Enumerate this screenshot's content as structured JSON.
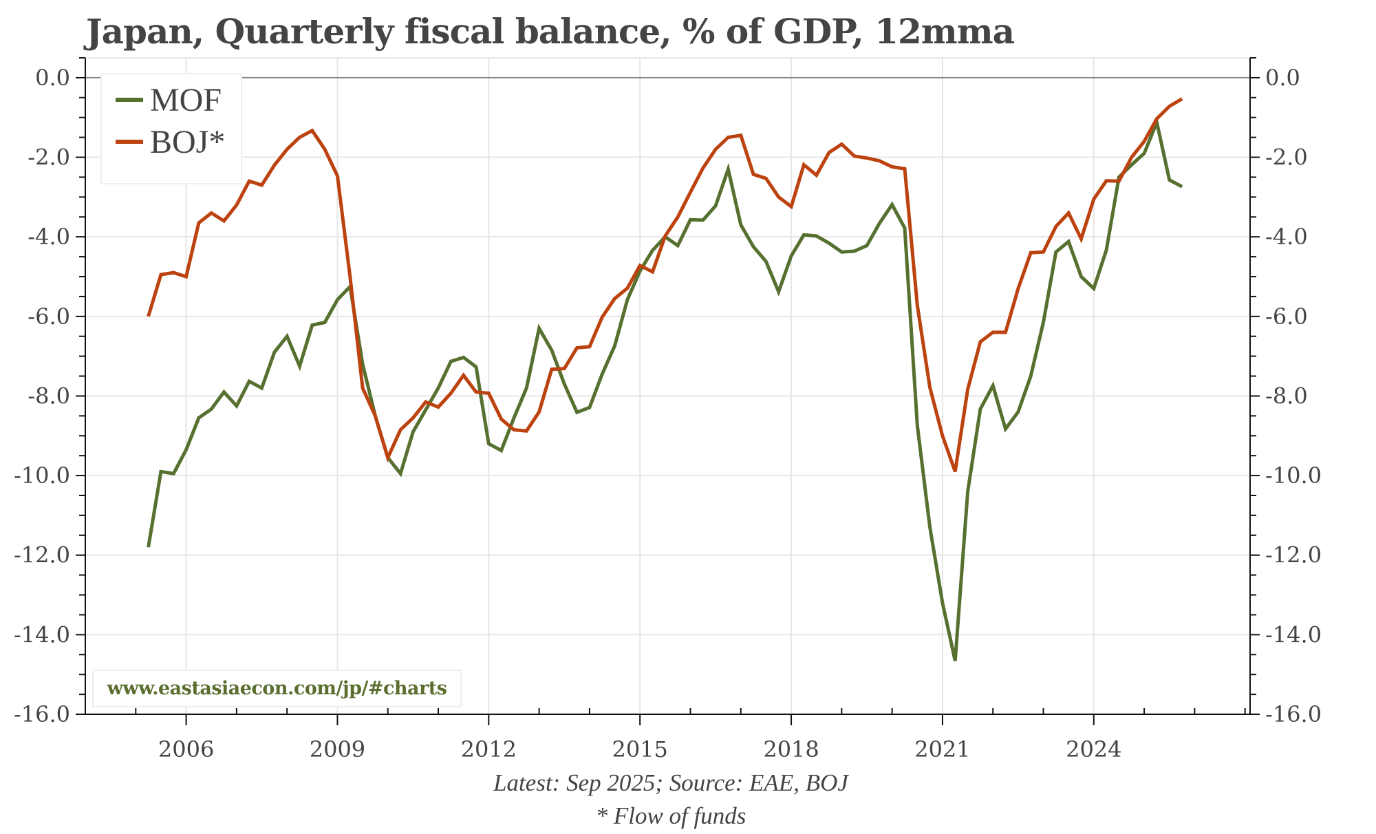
{
  "chart_data": {
    "type": "line",
    "title": "Japan, Quarterly fiscal balance, % of GDP, 12mma",
    "xlabel": "",
    "ylabel": "",
    "xlim": [
      2004.0,
      2027.1
    ],
    "ylim": [
      -16.0,
      0.5
    ],
    "x_ticks": [
      2006,
      2009,
      2012,
      2015,
      2018,
      2021,
      2024
    ],
    "x_tick_labels": [
      "2006",
      "2009",
      "2012",
      "2015",
      "2018",
      "2021",
      "2024"
    ],
    "y_ticks": [
      0,
      -2,
      -4,
      -6,
      -8,
      -10,
      -12,
      -14,
      -16
    ],
    "y_tick_labels": [
      "0.0",
      "-2.0",
      "-4.0",
      "-6.0",
      "-8.0",
      "-10.0",
      "-12.0",
      "-14.0",
      "-16.0"
    ],
    "grid": true,
    "zero_line": true,
    "legend_position": "top-left",
    "x_start": 2005.25,
    "x_step": 0.25,
    "series": [
      {
        "name": "MOF",
        "color": "#56702f",
        "values": [
          -11.8,
          -9.9,
          -9.95,
          -9.35,
          -8.55,
          -8.33,
          -7.9,
          -8.25,
          -7.63,
          -7.8,
          -6.9,
          -6.5,
          -7.25,
          -6.22,
          -6.15,
          -5.58,
          -5.25,
          -7.2,
          -8.5,
          -9.55,
          -9.95,
          -8.9,
          -8.35,
          -7.8,
          -7.13,
          -7.03,
          -7.27,
          -9.2,
          -9.37,
          -8.55,
          -7.8,
          -6.3,
          -6.85,
          -7.7,
          -8.41,
          -8.29,
          -7.45,
          -6.74,
          -5.58,
          -4.86,
          -4.34,
          -4.0,
          -4.22,
          -3.57,
          -3.58,
          -3.22,
          -2.3,
          -3.7,
          -4.25,
          -4.62,
          -5.38,
          -4.48,
          -3.95,
          -3.98,
          -4.16,
          -4.38,
          -4.36,
          -4.22,
          -3.66,
          -3.19,
          -3.78,
          -8.74,
          -11.3,
          -13.2,
          -14.66,
          -10.4,
          -8.33,
          -7.74,
          -8.83,
          -8.4,
          -7.5,
          -6.15,
          -4.38,
          -4.12,
          -5.0,
          -5.3,
          -4.33,
          -2.5,
          -2.19,
          -1.9,
          -1.12,
          -2.57,
          -2.74
        ]
      },
      {
        "name": "BOJ*",
        "color": "#bc420f",
        "values": [
          -6.0,
          -4.95,
          -4.9,
          -5.0,
          -3.65,
          -3.4,
          -3.6,
          -3.2,
          -2.6,
          -2.7,
          -2.2,
          -1.8,
          -1.5,
          -1.33,
          -1.8,
          -2.47,
          -5.0,
          -7.8,
          -8.5,
          -9.55,
          -8.85,
          -8.55,
          -8.15,
          -8.28,
          -7.93,
          -7.48,
          -7.9,
          -7.93,
          -8.58,
          -8.85,
          -8.88,
          -8.4,
          -7.33,
          -7.31,
          -6.79,
          -6.76,
          -6.02,
          -5.55,
          -5.29,
          -4.72,
          -4.88,
          -3.98,
          -3.5,
          -2.88,
          -2.27,
          -1.8,
          -1.5,
          -1.45,
          -2.43,
          -2.53,
          -3.0,
          -3.24,
          -2.19,
          -2.45,
          -1.88,
          -1.67,
          -1.97,
          -2.02,
          -2.09,
          -2.24,
          -2.29,
          -5.72,
          -7.79,
          -9.0,
          -9.9,
          -7.83,
          -6.64,
          -6.4,
          -6.4,
          -5.3,
          -4.4,
          -4.38,
          -3.74,
          -3.4,
          -4.05,
          -3.05,
          -2.59,
          -2.6,
          -2.0,
          -1.6,
          -1.03,
          -0.72,
          -0.53
        ]
      }
    ],
    "footnotes": [
      "Latest: Sep 2025; Source: EAE, BOJ",
      "* Flow of funds"
    ],
    "watermark": "www.eastasiaecon.com/jp/#charts"
  }
}
